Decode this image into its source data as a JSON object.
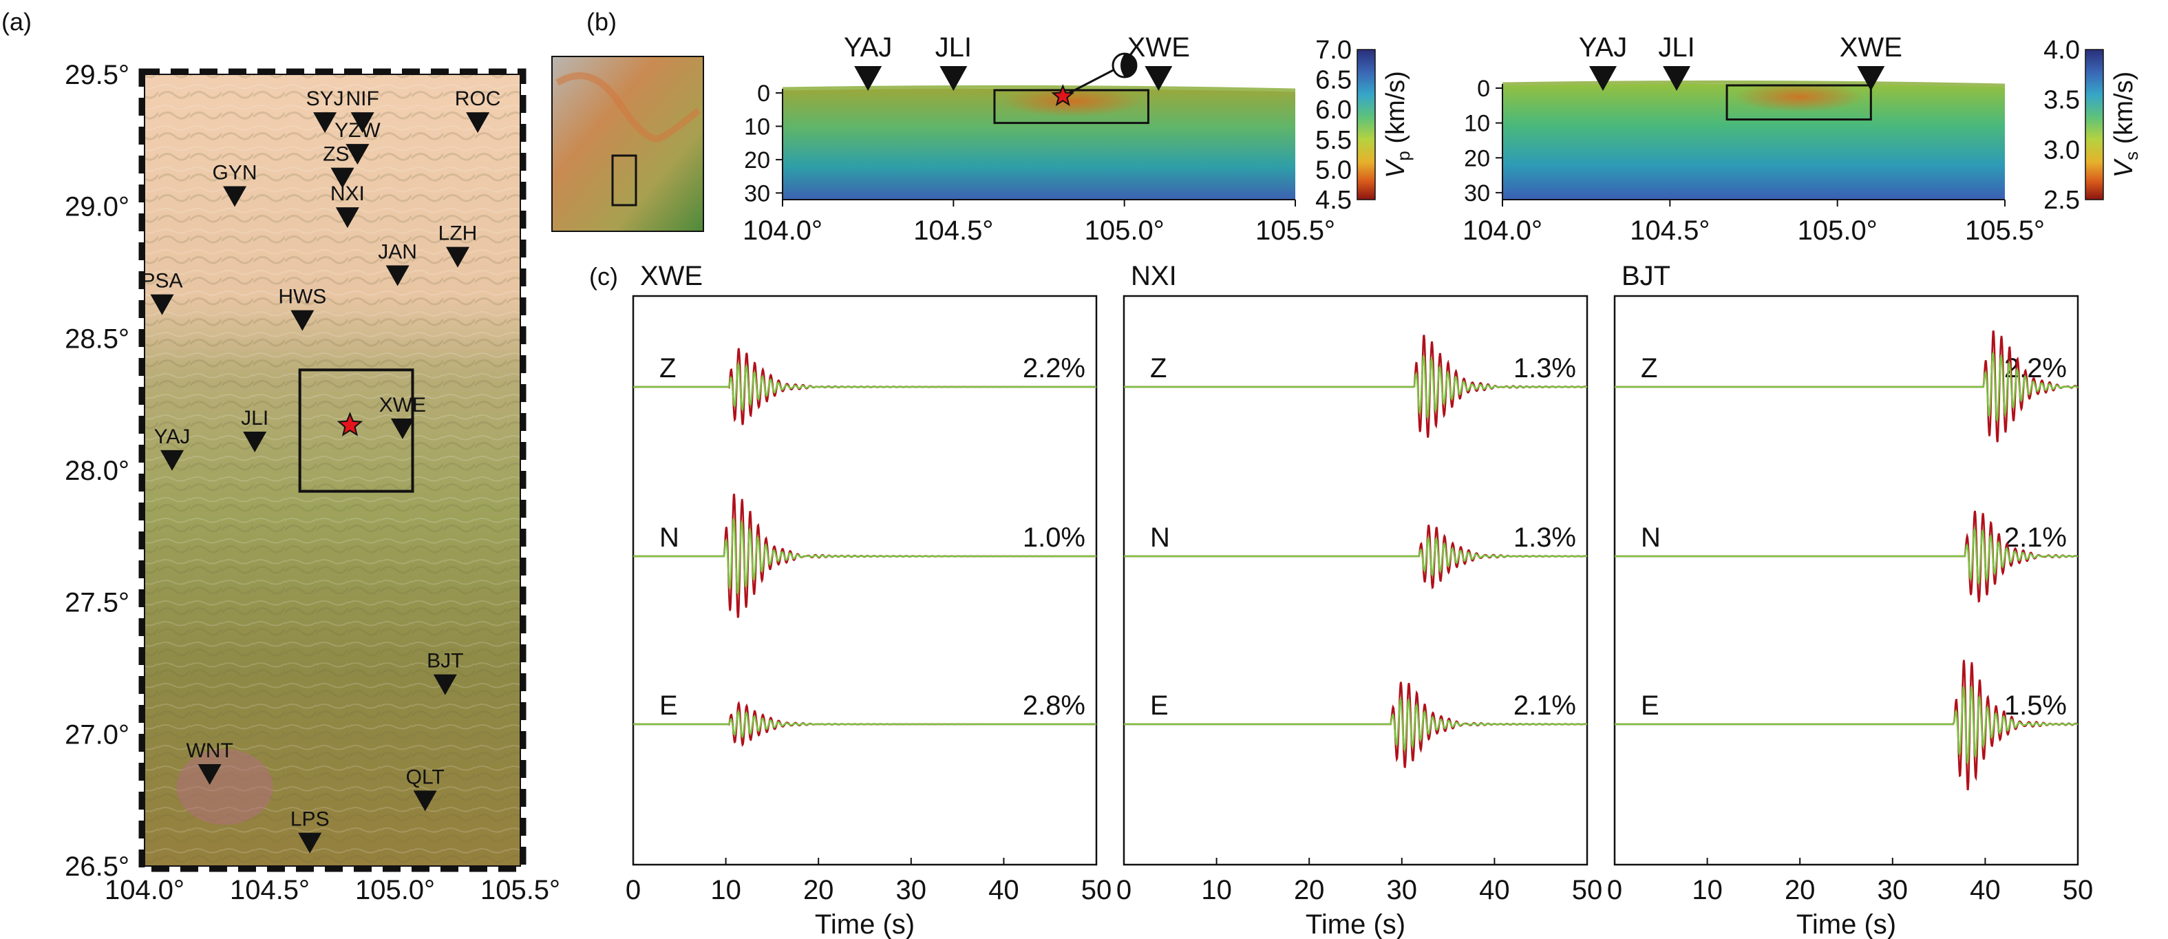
{
  "panel_labels": {
    "a": "(a)",
    "b": "(b)",
    "c": "(c)"
  },
  "map": {
    "lat_ticks": [
      "29.5°",
      "29.0°",
      "28.5°",
      "28.0°",
      "27.5°",
      "27.0°",
      "26.5°"
    ],
    "lon_ticks": [
      "104.0°",
      "104.5°",
      "105.0°",
      "105.5°"
    ],
    "lat_range": [
      26.5,
      29.5
    ],
    "lon_range": [
      104.0,
      105.5
    ],
    "epicenter": {
      "lon": 104.82,
      "lat": 28.17
    },
    "study_box": {
      "lon": [
        104.62,
        105.07
      ],
      "lat": [
        27.92,
        28.38
      ]
    },
    "stations": [
      {
        "code": "SYJ",
        "lon": 104.72,
        "lat": 29.33
      },
      {
        "code": "NIF",
        "lon": 104.87,
        "lat": 29.33
      },
      {
        "code": "ROC",
        "lon": 105.33,
        "lat": 29.33
      },
      {
        "code": "ZST",
        "lon": 104.79,
        "lat": 29.12
      },
      {
        "code": "YZW",
        "lon": 104.85,
        "lat": 29.21
      },
      {
        "code": "GYN",
        "lon": 104.36,
        "lat": 29.05
      },
      {
        "code": "NXI",
        "lon": 104.81,
        "lat": 28.97
      },
      {
        "code": "JAN",
        "lon": 105.01,
        "lat": 28.75
      },
      {
        "code": "LZH",
        "lon": 105.25,
        "lat": 28.82
      },
      {
        "code": "PSA",
        "lon": 104.07,
        "lat": 28.64
      },
      {
        "code": "HWS",
        "lon": 104.63,
        "lat": 28.58
      },
      {
        "code": "XWE",
        "lon": 105.03,
        "lat": 28.17
      },
      {
        "code": "YAJ",
        "lon": 104.11,
        "lat": 28.05
      },
      {
        "code": "JLI",
        "lon": 104.44,
        "lat": 28.12
      },
      {
        "code": "BJT",
        "lon": 105.2,
        "lat": 27.2
      },
      {
        "code": "WNT",
        "lon": 104.26,
        "lat": 26.86
      },
      {
        "code": "QLT",
        "lon": 105.12,
        "lat": 26.76
      },
      {
        "code": "LPS",
        "lon": 104.66,
        "lat": 26.6
      }
    ]
  },
  "sections": [
    {
      "id": "vp",
      "x_ticks": [
        "104.0°",
        "104.5°",
        "105.0°",
        "105.5°"
      ],
      "x_range": [
        104.0,
        105.5
      ],
      "y_ticks": [
        "0",
        "10",
        "20",
        "30"
      ],
      "y_range": [
        0,
        32
      ],
      "stations": [
        {
          "code": "YAJ",
          "lon": 104.25
        },
        {
          "code": "JLI",
          "lon": 104.5
        },
        {
          "code": "XWE",
          "lon": 105.1
        }
      ],
      "box": {
        "lon": [
          104.62,
          105.07
        ],
        "depth": [
          0,
          9
        ]
      },
      "star": {
        "lon": 104.82,
        "depth": 1
      },
      "colorbar": {
        "ticks": [
          "7.0",
          "6.5",
          "6.0",
          "5.5",
          "5.0",
          "4.5"
        ],
        "range": [
          4.5,
          7.0
        ],
        "label_sym": "V",
        "label_sub": "p",
        "label_unit": " (km/s)"
      }
    },
    {
      "id": "vs",
      "x_ticks": [
        "104.0°",
        "104.5°",
        "105.0°",
        "105.5°"
      ],
      "x_range": [
        104.0,
        105.5
      ],
      "y_ticks": [
        "0",
        "10",
        "20",
        "30"
      ],
      "y_range": [
        0,
        32
      ],
      "stations": [
        {
          "code": "YAJ",
          "lon": 104.3
        },
        {
          "code": "JLI",
          "lon": 104.52
        },
        {
          "code": "XWE",
          "lon": 105.1
        }
      ],
      "box": {
        "lon": [
          104.67,
          105.1
        ],
        "depth": [
          0,
          9
        ]
      },
      "colorbar": {
        "ticks": [
          "4.0",
          "3.5",
          "3.0",
          "2.5"
        ],
        "range": [
          2.5,
          4.0
        ],
        "label_sym": "V",
        "label_sub": "s",
        "label_unit": " (km/s)"
      }
    }
  ],
  "chart_data": {
    "type": "line",
    "xlabel": "Time (s)",
    "x_ticks": [
      "0",
      "10",
      "20",
      "30",
      "40",
      "50"
    ],
    "xlim": [
      0,
      50
    ],
    "colors": {
      "observed": "#b0101a",
      "synthetic": "#7cc242"
    },
    "panels": [
      {
        "station": "XWE",
        "components": [
          {
            "name": "Z",
            "misfit": "2.2%",
            "arrival": 12.5,
            "amp": 0.55
          },
          {
            "name": "N",
            "misfit": "1.0%",
            "arrival": 12.0,
            "amp": 0.95
          },
          {
            "name": "E",
            "misfit": "2.8%",
            "arrival": 12.5,
            "amp": 0.3
          }
        ]
      },
      {
        "station": "NXI",
        "components": [
          {
            "name": "Z",
            "misfit": "1.3%",
            "arrival": 33.5,
            "amp": 0.75
          },
          {
            "name": "N",
            "misfit": "1.3%",
            "arrival": 34.0,
            "amp": 0.45
          },
          {
            "name": "E",
            "misfit": "2.1%",
            "arrival": 31.0,
            "amp": 0.65
          }
        ]
      },
      {
        "station": "BJT",
        "components": [
          {
            "name": "Z",
            "misfit": "2.2%",
            "arrival": 42.0,
            "amp": 0.85
          },
          {
            "name": "N",
            "misfit": "2.1%",
            "arrival": 40.0,
            "amp": 0.7
          },
          {
            "name": "E",
            "misfit": "1.5%",
            "arrival": 38.8,
            "amp": 0.95
          }
        ]
      }
    ]
  }
}
